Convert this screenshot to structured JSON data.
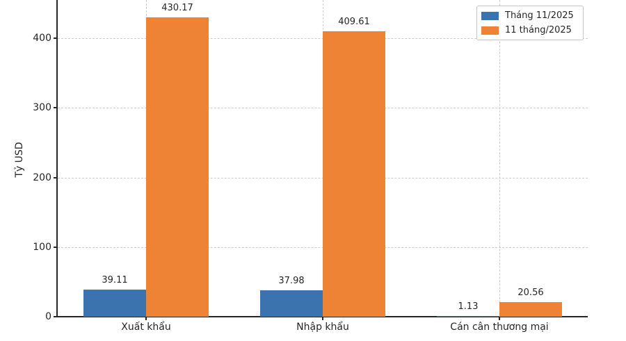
{
  "figure": {
    "background": "#ffffff",
    "axis_color": "#262626",
    "gridline_color": "#cccccc"
  },
  "chart_data": {
    "type": "bar",
    "title": "",
    "xlabel": "",
    "ylabel": "Tỷ USD",
    "categories": [
      "Xuất khẩu",
      "Nhập khẩu",
      "Cán cân thương mại"
    ],
    "series": [
      {
        "name": "Tháng 11/2025",
        "color": "#3b73af",
        "values": [
          39.11,
          37.98,
          1.13
        ]
      },
      {
        "name": "11 tháng/2025",
        "color": "#ee8335",
        "values": [
          430.17,
          409.61,
          20.56
        ]
      }
    ],
    "yticks": [
      0,
      100,
      200,
      300,
      400
    ],
    "ylim": [
      0,
      455
    ],
    "grid": "dashed-both",
    "legend_position": "upper-right",
    "bar_value_labels_shown": true
  }
}
